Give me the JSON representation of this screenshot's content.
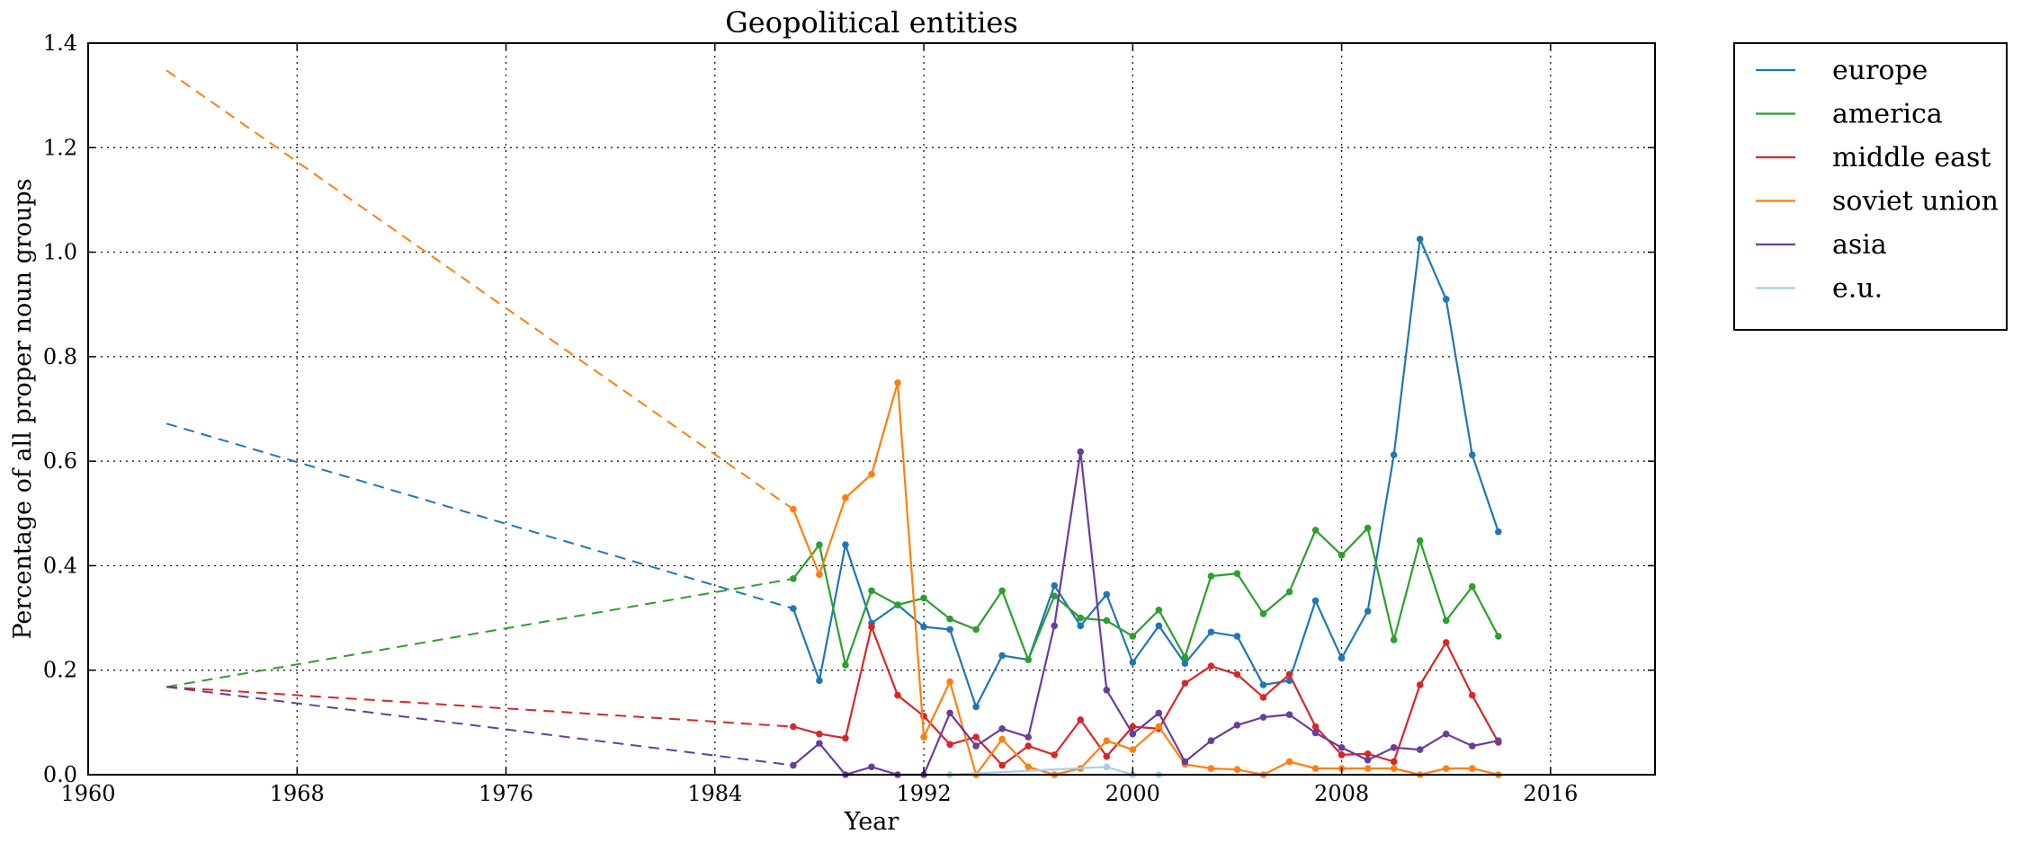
{
  "chart_data": {
    "type": "line",
    "title": "Geopolitical entities",
    "xlabel": "Year",
    "ylabel": "Percentage of all proper noun groups",
    "xlim": [
      1960,
      2020
    ],
    "ylim": [
      0,
      1.4
    ],
    "x_ticks": [
      1960,
      1968,
      1976,
      1984,
      1992,
      2000,
      2008,
      2016
    ],
    "y_ticks": [
      "0.0",
      "0.2",
      "0.4",
      "0.6",
      "0.8",
      "1.0",
      "1.2",
      "1.4"
    ],
    "grid": true,
    "legend_position": "outside-right",
    "series": [
      {
        "name": "europe",
        "color": "#1f77b4",
        "projection": {
          "x": [
            1963,
            1987
          ],
          "y": [
            0.672,
            0.318
          ]
        },
        "x": [
          1987,
          1988,
          1989,
          1990,
          1991,
          1992,
          1993,
          1994,
          1995,
          1996,
          1997,
          1998,
          1999,
          2000,
          2001,
          2002,
          2003,
          2004,
          2005,
          2006,
          2007,
          2008,
          2009,
          2010,
          2011,
          2012,
          2013,
          2014
        ],
        "y": [
          0.318,
          0.18,
          0.44,
          0.29,
          0.325,
          0.283,
          0.278,
          0.13,
          0.228,
          0.22,
          0.362,
          0.285,
          0.345,
          0.215,
          0.285,
          0.213,
          0.273,
          0.265,
          0.172,
          0.18,
          0.333,
          0.223,
          0.313,
          0.612,
          1.025,
          0.91,
          0.612,
          0.465
        ]
      },
      {
        "name": "america",
        "color": "#2ca02c",
        "projection": {
          "x": [
            1963,
            1987
          ],
          "y": [
            0.168,
            0.375
          ]
        },
        "x": [
          1987,
          1988,
          1989,
          1990,
          1991,
          1992,
          1993,
          1994,
          1995,
          1996,
          1997,
          1998,
          1999,
          2000,
          2001,
          2002,
          2003,
          2004,
          2005,
          2006,
          2007,
          2008,
          2009,
          2010,
          2011,
          2012,
          2013,
          2014
        ],
        "y": [
          0.375,
          0.44,
          0.21,
          0.352,
          0.325,
          0.338,
          0.298,
          0.278,
          0.352,
          0.22,
          0.342,
          0.3,
          0.295,
          0.265,
          0.315,
          0.225,
          0.38,
          0.385,
          0.308,
          0.35,
          0.468,
          0.42,
          0.472,
          0.258,
          0.448,
          0.295,
          0.36,
          0.265
        ]
      },
      {
        "name": "middle east",
        "color": "#d62728",
        "projection": {
          "x": [
            1963,
            1987
          ],
          "y": [
            0.168,
            0.092
          ]
        },
        "x": [
          1987,
          1988,
          1989,
          1990,
          1991,
          1992,
          1993,
          1994,
          1995,
          1996,
          1997,
          1998,
          1999,
          2000,
          2001,
          2002,
          2003,
          2004,
          2005,
          2006,
          2007,
          2008,
          2009,
          2010,
          2011,
          2012,
          2013,
          2014
        ],
        "y": [
          0.092,
          0.078,
          0.07,
          0.283,
          0.152,
          0.112,
          0.058,
          0.072,
          0.018,
          0.055,
          0.038,
          0.105,
          0.035,
          0.092,
          0.088,
          0.175,
          0.208,
          0.192,
          0.148,
          0.192,
          0.092,
          0.038,
          0.04,
          0.025,
          0.172,
          0.253,
          0.152,
          0.062
        ]
      },
      {
        "name": "soviet union",
        "color": "#ff7f0e",
        "projection": {
          "x": [
            1963,
            1987
          ],
          "y": [
            1.348,
            0.508
          ]
        },
        "x": [
          1987,
          1988,
          1989,
          1990,
          1991,
          1992,
          1993,
          1994,
          1995,
          1996,
          1997,
          1998,
          1999,
          2000,
          2001,
          2002,
          2003,
          2004,
          2005,
          2006,
          2007,
          2008,
          2009,
          2010,
          2011,
          2012,
          2013,
          2014
        ],
        "y": [
          0.508,
          0.383,
          0.53,
          0.575,
          0.75,
          0.072,
          0.178,
          0.0,
          0.068,
          0.015,
          0.0,
          0.012,
          0.065,
          0.048,
          0.092,
          0.02,
          0.012,
          0.01,
          0.0,
          0.025,
          0.012,
          0.012,
          0.012,
          0.012,
          0.0,
          0.012,
          0.012,
          0.0
        ]
      },
      {
        "name": "asia",
        "color": "#6a3d9a",
        "projection": {
          "x": [
            1963,
            1987
          ],
          "y": [
            0.168,
            0.018
          ]
        },
        "x": [
          1987,
          1988,
          1989,
          1990,
          1991,
          1992,
          1993,
          1994,
          1995,
          1996,
          1997,
          1998,
          1999,
          2000,
          2001,
          2002,
          2003,
          2004,
          2005,
          2006,
          2007,
          2008,
          2009,
          2010,
          2011,
          2012,
          2013,
          2014
        ],
        "y": [
          0.018,
          0.06,
          0.0,
          0.015,
          0.0,
          0.0,
          0.118,
          0.055,
          0.088,
          0.072,
          0.285,
          0.618,
          0.162,
          0.078,
          0.118,
          0.025,
          0.065,
          0.095,
          0.11,
          0.115,
          0.08,
          0.052,
          0.028,
          0.052,
          0.048,
          0.078,
          0.055,
          0.065
        ]
      },
      {
        "name": "e.u.",
        "color": "#a6cee3",
        "x": [
          1993,
          1999,
          2000,
          2001
        ],
        "y": [
          0.0,
          0.015,
          0.0,
          0.0
        ]
      }
    ]
  }
}
